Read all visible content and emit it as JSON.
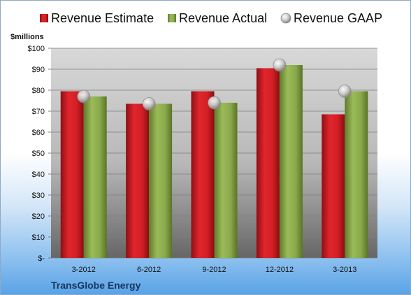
{
  "chart_data": {
    "type": "bar",
    "unit_label": "$millions",
    "categories": [
      "3-2012",
      "6-2012",
      "9-2012",
      "12-2012",
      "3-2013"
    ],
    "series": [
      {
        "name": "Revenue Estimate",
        "type": "bar",
        "color": "#cc1f25",
        "values": [
          79.5,
          73.5,
          79.5,
          90.5,
          68.5
        ]
      },
      {
        "name": "Revenue Actual",
        "type": "bar",
        "color": "#8aa94b",
        "values": [
          77,
          73.5,
          74,
          92,
          79.5
        ]
      },
      {
        "name": "Revenue GAAP",
        "type": "scatter",
        "color": "#c8c8c8",
        "values": [
          77,
          73.5,
          74,
          92,
          79.5
        ]
      }
    ],
    "y_ticks": [
      "$-",
      "$10",
      "$20",
      "$30",
      "$40",
      "$50",
      "$60",
      "$70",
      "$80",
      "$90",
      "$100"
    ],
    "ylim": [
      0,
      100
    ],
    "grid": true,
    "legend_position": "top",
    "footer": "TransGlobe Energy"
  }
}
